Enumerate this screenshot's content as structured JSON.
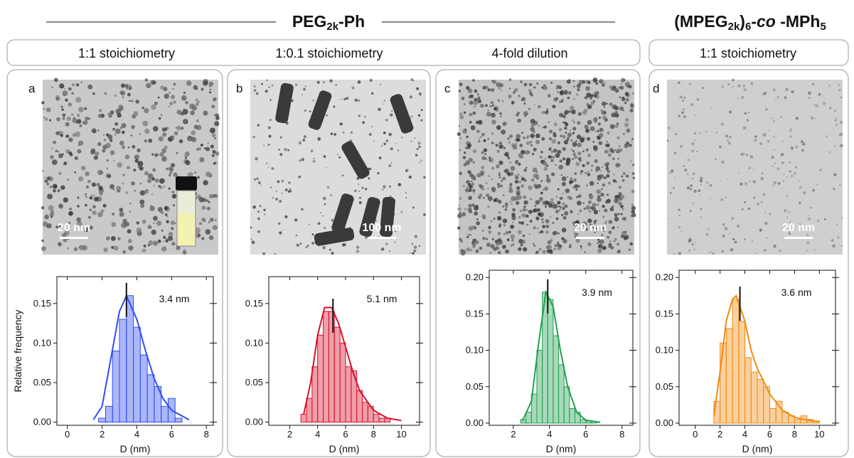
{
  "groups": [
    {
      "title": [
        "PEG",
        "2k",
        "-Ph"
      ]
    },
    {
      "title": [
        "(MPEG",
        "2k",
        ")",
        "6",
        "-",
        "co",
        " -MPh",
        "5"
      ]
    }
  ],
  "conditions": [
    "1:1 stoichiometry",
    "1:0.1 stoichiometry",
    "4-fold dilution",
    "1:1 stoichiometry"
  ],
  "panels": [
    {
      "label": "a",
      "scale_bar": "20 nm"
    },
    {
      "label": "b",
      "scale_bar": "100 nm"
    },
    {
      "label": "c",
      "scale_bar": "20 nm"
    },
    {
      "label": "d",
      "scale_bar": "20 nm"
    }
  ],
  "chart_data": [
    {
      "type": "histogram",
      "color": "#2f4cf5",
      "xlabel": "D (nm)",
      "ylabel": "Relative frequency",
      "mean": 3.4,
      "mean_label": "3.4 nm",
      "bins": [
        1.8,
        2.2,
        2.6,
        3.0,
        3.4,
        3.8,
        4.2,
        4.6,
        5.0,
        5.4,
        5.8,
        6.2,
        6.6
      ],
      "values": [
        0.005,
        0.02,
        0.09,
        0.13,
        0.16,
        0.12,
        0.085,
        0.06,
        0.045,
        0.02,
        0.03,
        0.005
      ],
      "fit": {
        "x": [
          1.5,
          2,
          2.5,
          3,
          3.4,
          4,
          4.5,
          5,
          5.5,
          6,
          7
        ],
        "y": [
          0.003,
          0.02,
          0.08,
          0.14,
          0.16,
          0.13,
          0.09,
          0.055,
          0.03,
          0.015,
          0.003
        ]
      },
      "xlim": [
        -0.6,
        8.4
      ],
      "xticks": [
        0,
        2,
        4,
        6,
        8
      ],
      "ylim": [
        -0.004,
        0.184
      ],
      "yticks": [
        {
          "value": 0,
          "label": "0.00"
        },
        {
          "value": 0.05,
          "label": "0.05"
        },
        {
          "value": 0.1,
          "label": "0.10"
        },
        {
          "value": 0.15,
          "label": "0.15"
        }
      ]
    },
    {
      "type": "histogram",
      "color": "#d8102a",
      "xlabel": "D (nm)",
      "mean": 5.1,
      "mean_label": "5.1 nm",
      "bins": [
        2.8,
        3.2,
        3.6,
        4.0,
        4.4,
        4.8,
        5.2,
        5.6,
        6.0,
        6.4,
        6.8,
        7.2,
        7.6,
        8.0,
        8.4,
        8.8,
        9.2
      ],
      "values": [
        0.01,
        0.03,
        0.07,
        0.11,
        0.14,
        0.14,
        0.12,
        0.1,
        0.07,
        0.065,
        0.04,
        0.025,
        0.02,
        0.01,
        0.005,
        0.005
      ],
      "fit": {
        "x": [
          3,
          3.5,
          4,
          4.5,
          5,
          5.5,
          6,
          6.5,
          7,
          8,
          9,
          10
        ],
        "y": [
          0.01,
          0.05,
          0.11,
          0.145,
          0.145,
          0.125,
          0.095,
          0.065,
          0.04,
          0.015,
          0.005,
          0.002
        ]
      },
      "xlim": [
        0.5,
        11.3
      ],
      "xticks": [
        2,
        4,
        6,
        8,
        10
      ],
      "ylim": [
        -0.004,
        0.184
      ],
      "yticks": [
        {
          "value": 0,
          "label": "0.00"
        },
        {
          "value": 0.05,
          "label": "0.05"
        },
        {
          "value": 0.1,
          "label": "0.10"
        },
        {
          "value": 0.15,
          "label": "0.15"
        }
      ]
    },
    {
      "type": "histogram",
      "color": "#22a050",
      "xlabel": "D (nm)",
      "mean": 3.9,
      "mean_label": "3.9 nm",
      "bins": [
        2.4,
        2.7,
        3.0,
        3.3,
        3.6,
        3.9,
        4.2,
        4.5,
        4.8,
        5.1,
        5.4,
        5.7,
        6.0,
        6.3,
        6.6
      ],
      "values": [
        0.005,
        0.015,
        0.04,
        0.1,
        0.18,
        0.17,
        0.12,
        0.08,
        0.05,
        0.02,
        0.015,
        0.005,
        0.003,
        0.002
      ],
      "fit": {
        "x": [
          2.5,
          3,
          3.4,
          3.8,
          4.2,
          4.6,
          5,
          5.5,
          6,
          6.8
        ],
        "y": [
          0.003,
          0.03,
          0.11,
          0.18,
          0.16,
          0.1,
          0.05,
          0.015,
          0.004,
          0.001
        ]
      },
      "xlim": [
        0.67,
        8.6
      ],
      "xticks": [
        2,
        4,
        6,
        8
      ],
      "ylim": [
        -0.003,
        0.21
      ],
      "yticks": [
        {
          "value": 0,
          "label": "0.00"
        },
        {
          "value": 0.05,
          "label": "0.05"
        },
        {
          "value": 0.1,
          "label": "0.10"
        },
        {
          "value": 0.15,
          "label": "0.15"
        },
        {
          "value": 0.2,
          "label": "0.20"
        }
      ]
    },
    {
      "type": "histogram",
      "color": "#f08a10",
      "xlabel": "D (nm)",
      "mean": 3.6,
      "mean_label": "3.6 nm",
      "bins": [
        1.5,
        2.0,
        2.5,
        3.0,
        3.5,
        4.0,
        4.5,
        5.0,
        5.5,
        6.0,
        6.5,
        7.0,
        7.5,
        8.0,
        8.5,
        9.0,
        9.5,
        10.0
      ],
      "values": [
        0.03,
        0.11,
        0.13,
        0.17,
        0.14,
        0.09,
        0.07,
        0.06,
        0.05,
        0.02,
        0.03,
        0.015,
        0.01,
        0.005,
        0.01,
        0.005,
        0.003
      ],
      "fit": {
        "x": [
          1.5,
          2,
          2.5,
          3,
          3.3,
          4,
          4.5,
          5,
          6,
          7,
          8,
          9,
          10
        ],
        "y": [
          0.01,
          0.07,
          0.14,
          0.17,
          0.175,
          0.14,
          0.1,
          0.075,
          0.04,
          0.018,
          0.008,
          0.004,
          0.002
        ]
      },
      "xlim": [
        -1.3,
        11.3
      ],
      "xticks": [
        0,
        2,
        4,
        6,
        8,
        10
      ],
      "ylim": [
        -0.003,
        0.21
      ],
      "yticks": [
        {
          "value": 0,
          "label": "0.00"
        },
        {
          "value": 0.05,
          "label": "0.05"
        },
        {
          "value": 0.1,
          "label": "0.10"
        },
        {
          "value": 0.15,
          "label": "0.15"
        },
        {
          "value": 0.2,
          "label": "0.20"
        }
      ]
    }
  ]
}
